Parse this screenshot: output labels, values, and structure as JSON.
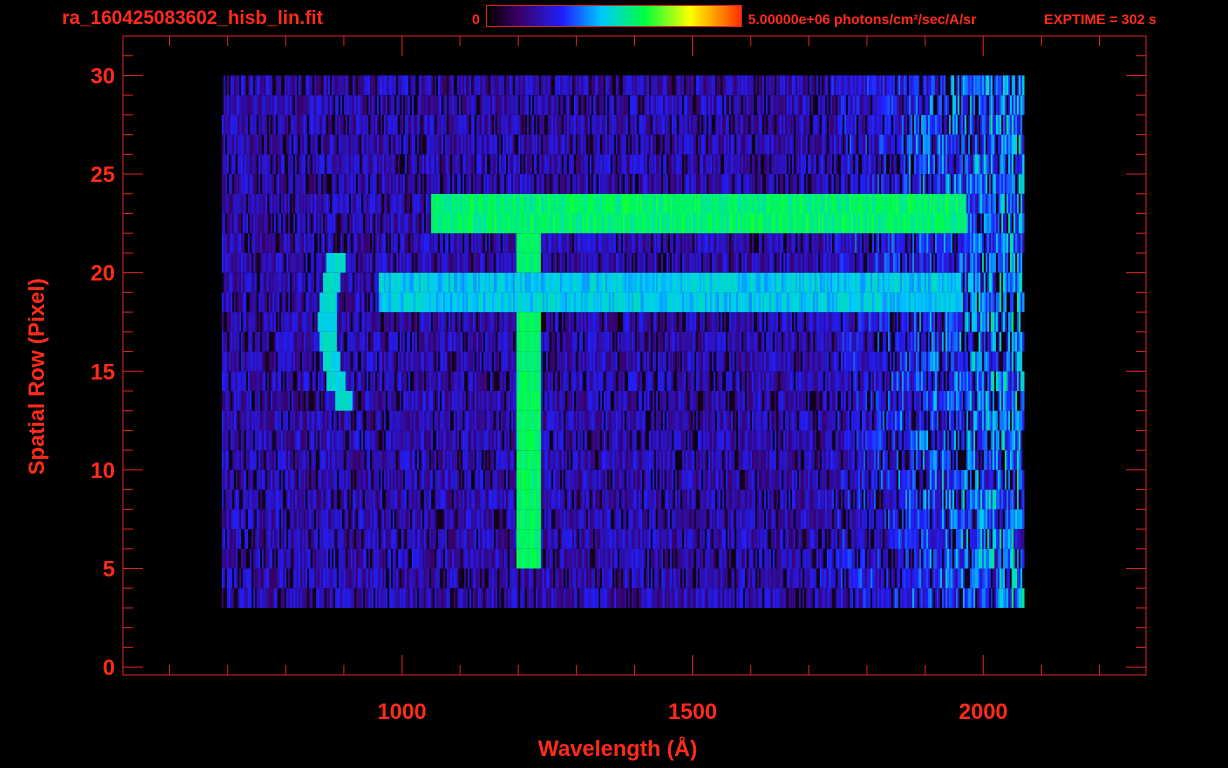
{
  "header": {
    "filename": "ra_160425083602_hisb_lin.fit",
    "colorbar_min": "0",
    "colorbar_max": "5.00000e+06 photons/cm²/sec/A/sr",
    "exptime": "EXPTIME = 302 s"
  },
  "colors": {
    "axis": "#dd2222",
    "labels": "#ff2a1a",
    "background": "#000000"
  },
  "chart_data": {
    "type": "heatmap",
    "xlabel": "Wavelength (Å)",
    "ylabel": "Spatial Row (Pixel)",
    "xlim": [
      520,
      2280
    ],
    "ylim": [
      -0.4,
      32
    ],
    "x_ticks": [
      1000,
      1500,
      2000
    ],
    "x_tick_labels": [
      "1000",
      "1500",
      "2000"
    ],
    "y_ticks": [
      0,
      5,
      10,
      15,
      20,
      25,
      30
    ],
    "y_tick_labels": [
      "0",
      "5",
      "10",
      "15",
      "20",
      "25",
      "30"
    ],
    "colorbar": {
      "min": 0,
      "max": 5000000,
      "units": "photons/cm²/sec/A/sr"
    },
    "grid": false,
    "features": [
      {
        "kind": "emission_line",
        "wavelength": 1216,
        "rows": [
          5,
          24
        ],
        "level": 0.55
      },
      {
        "kind": "sky_band",
        "rows": [
          22,
          24
        ],
        "wavelength_range": [
          1050,
          1970
        ],
        "level": 0.52
      },
      {
        "kind": "sky_band",
        "rows": [
          18,
          20
        ],
        "wavelength_range": [
          960,
          1960
        ],
        "level": 0.4
      },
      {
        "kind": "curved_line",
        "rows": [
          13,
          21
        ],
        "wavelength_center": 870,
        "level": 0.45
      }
    ],
    "detector_extent": {
      "wavelength_range": [
        690,
        2070
      ],
      "rows": [
        3,
        30
      ]
    }
  }
}
